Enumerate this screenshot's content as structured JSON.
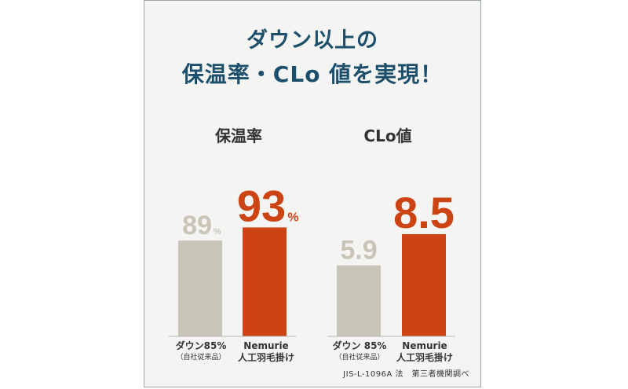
{
  "title": {
    "line1": "ダウン以上の",
    "line2": "保温率・CLo 値を実現！"
  },
  "chart_data": [
    {
      "type": "bar",
      "title": "保温率",
      "categories": [
        "ダウン85%",
        "Nemurie"
      ],
      "values": [
        89,
        93
      ],
      "unit": "%",
      "value_labels": [
        "89",
        "93"
      ],
      "colors": [
        "#c9c4b8",
        "#cc4314"
      ],
      "grid": false
    },
    {
      "type": "bar",
      "title": "CLo値",
      "categories": [
        "ダウン 85%",
        "Nemurie"
      ],
      "values": [
        5.9,
        8.5
      ],
      "value_labels": [
        "5.9",
        "8.5"
      ],
      "colors": [
        "#c9c4b8",
        "#cc4314"
      ],
      "grid": false
    }
  ],
  "category_labels": {
    "down_line1": "ダウン85%",
    "down_line2": "（自社従来品）",
    "down2_line1": "ダウン 85%",
    "down2_line2": "（自社従来品）",
    "nemurie_line1": "Nemurie",
    "nemurie_line2": "人工羽毛掛け"
  },
  "source_note": "JIS-L-1096A 法　第三者機関調べ",
  "colors": {
    "title": "#1c4f6b",
    "down_bar": "#c9c4b8",
    "down_label": "#c9c4b8",
    "nemurie_bar": "#cc4314",
    "nemurie_label": "#cc4314",
    "baseline": "#b8b8b8"
  }
}
